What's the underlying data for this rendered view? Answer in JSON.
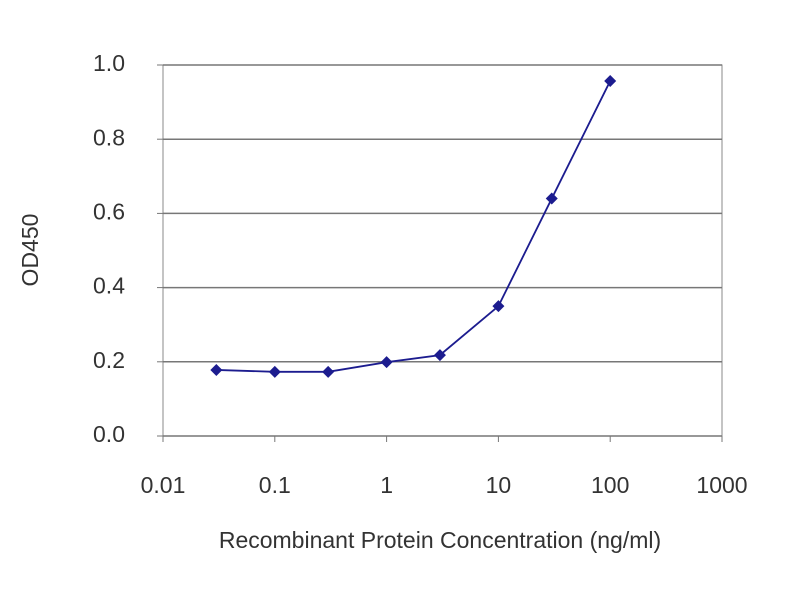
{
  "chart_data": {
    "type": "line",
    "x_label": "Recombinant Protein Concentration (ng/ml)",
    "y_label": "OD450",
    "x": [
      0.03,
      0.1,
      0.3,
      1,
      3,
      10,
      30,
      100
    ],
    "series": [
      {
        "color": "#1c1c8f",
        "values": [
          0.178,
          0.173,
          0.173,
          0.199,
          0.218,
          0.35,
          0.64,
          0.957
        ]
      }
    ],
    "xlim": [
      0.01,
      1000
    ],
    "xticks": [
      0.01,
      0.1,
      1,
      10,
      100,
      1000
    ],
    "x_log": true,
    "ylim": [
      0,
      1
    ],
    "yticks": [
      {
        "value": 0,
        "label": "0.0"
      },
      0.2,
      0.4,
      0.6,
      0.8,
      {
        "value": 1,
        "label": "1.0"
      }
    ],
    "grid": true
  }
}
